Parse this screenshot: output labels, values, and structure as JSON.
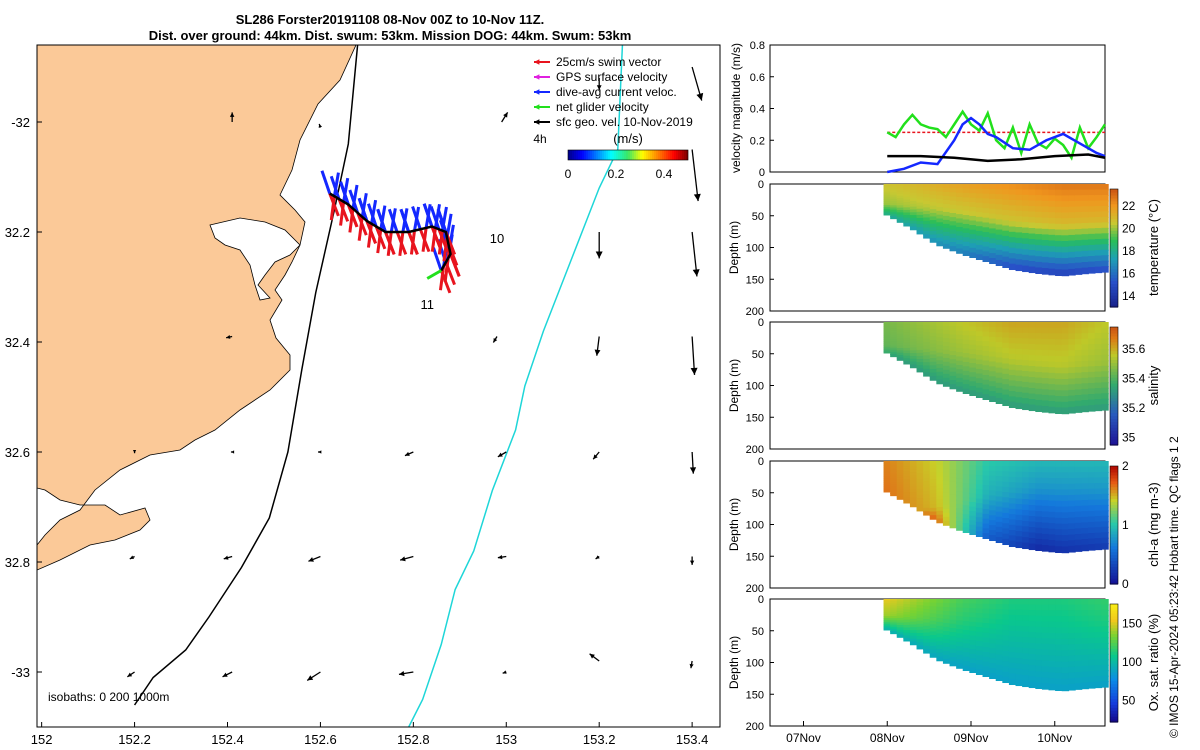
{
  "title": {
    "line1": "SL286 Forster20191108 08-Nov 00Z to 10-Nov 11Z.",
    "line2": "Dist. over ground: 44km. Dist. swum: 53km. Mission DOG: 44km. Swum: 53km"
  },
  "credit": "© IMOS 15-Apr-2024 05:23:42 Hobart time. QC flags 1  2",
  "colors": {
    "land": "#fbc998",
    "swim_vector": "#e8141e",
    "gps_velocity": "#e020e0",
    "dive_avg": "#1428ff",
    "net_glider": "#22e01c",
    "sfc_geo": "#000000",
    "isobath_0": "#000000",
    "isobath_200": "#000000",
    "isobath_1000": "#1ed6d8"
  },
  "chart_data": [
    {
      "type": "scatter",
      "panel": "map",
      "x_ticks": [
        "152",
        "152.2",
        "152.4",
        "152.6",
        "152.8",
        "153",
        "153.2",
        "153.4"
      ],
      "y_ticks": [
        "-32",
        "32.2",
        "32.4",
        "32.6",
        "32.8",
        "-33"
      ],
      "xlim": [
        151.99,
        153.46
      ],
      "ylim": [
        -33.1,
        -31.86
      ],
      "legend": {
        "placement": "top-right",
        "entries": [
          "25cm/s swim vector",
          "GPS surface velocity",
          "dive-avg current veloc.",
          "net glider velocity",
          "sfc geo. vel. 10-Nov-2019"
        ]
      },
      "colorbar": {
        "label": "(m/s)",
        "ticks": [
          "0",
          "0.2",
          "0.4"
        ],
        "range": [
          0,
          0.5
        ],
        "extra_label": "4h"
      },
      "isobath_label": "isobaths: 0   200   1000m",
      "day_labels": [
        {
          "text": "10",
          "lon": 152.98,
          "lat": -32.22
        },
        {
          "text": "11",
          "lon": 152.83,
          "lat": -32.34
        }
      ],
      "glider_track": [
        [
          152.62,
          -32.13
        ],
        [
          152.66,
          -32.15
        ],
        [
          152.7,
          -32.18
        ],
        [
          152.74,
          -32.2
        ],
        [
          152.79,
          -32.2
        ],
        [
          152.84,
          -32.19
        ],
        [
          152.87,
          -32.2
        ],
        [
          152.88,
          -32.24
        ],
        [
          152.86,
          -32.27
        ]
      ],
      "isobath_200": [
        [
          152.68,
          -31.86
        ],
        [
          152.66,
          -32.04
        ],
        [
          152.63,
          -32.16
        ],
        [
          152.59,
          -32.31
        ],
        [
          152.56,
          -32.45
        ],
        [
          152.53,
          -32.6
        ],
        [
          152.49,
          -32.72
        ],
        [
          152.43,
          -32.81
        ],
        [
          152.36,
          -32.9
        ],
        [
          152.31,
          -32.96
        ],
        [
          152.24,
          -33.01
        ],
        [
          152.2,
          -33.06
        ]
      ],
      "isobath_1000": [
        [
          153.25,
          -31.86
        ],
        [
          153.24,
          -32.05
        ],
        [
          153.2,
          -32.12
        ],
        [
          153.14,
          -32.25
        ],
        [
          153.08,
          -32.38
        ],
        [
          153.04,
          -32.48
        ],
        [
          153.02,
          -32.56
        ],
        [
          152.97,
          -32.67
        ],
        [
          152.93,
          -32.78
        ],
        [
          152.89,
          -32.85
        ],
        [
          152.86,
          -32.95
        ],
        [
          152.82,
          -33.05
        ],
        [
          152.79,
          -33.1
        ]
      ],
      "vectors": [
        {
          "lon": 152.41,
          "lat": -32.0,
          "u": 0.0,
          "v": 0.08
        },
        {
          "lon": 152.6,
          "lat": -32.01,
          "u": -0.01,
          "v": 0.03
        },
        {
          "lon": 152.99,
          "lat": -32.0,
          "u": 0.05,
          "v": 0.08
        },
        {
          "lon": 153.2,
          "lat": -31.92,
          "u": 0.0,
          "v": -0.1
        },
        {
          "lon": 153.4,
          "lat": -31.9,
          "u": 0.08,
          "v": -0.28
        },
        {
          "lon": 153.4,
          "lat": -32.05,
          "u": 0.05,
          "v": -0.43
        },
        {
          "lon": 153.2,
          "lat": -32.2,
          "u": 0.0,
          "v": -0.22
        },
        {
          "lon": 153.4,
          "lat": -32.2,
          "u": 0.04,
          "v": -0.37
        },
        {
          "lon": 152.41,
          "lat": -32.39,
          "u": -0.05,
          "v": -0.01
        },
        {
          "lon": 152.98,
          "lat": -32.39,
          "u": -0.03,
          "v": -0.05
        },
        {
          "lon": 153.2,
          "lat": -32.39,
          "u": -0.02,
          "v": -0.16
        },
        {
          "lon": 153.4,
          "lat": -32.39,
          "u": 0.02,
          "v": -0.32
        },
        {
          "lon": 152.2,
          "lat": -32.6,
          "u": 0.0,
          "v": -0.01
        },
        {
          "lon": 152.41,
          "lat": -32.6,
          "u": -0.01,
          "v": 0.0
        },
        {
          "lon": 152.6,
          "lat": -32.6,
          "u": -0.02,
          "v": 0.0
        },
        {
          "lon": 152.8,
          "lat": -32.6,
          "u": -0.07,
          "v": -0.03
        },
        {
          "lon": 153.0,
          "lat": -32.6,
          "u": -0.07,
          "v": -0.04
        },
        {
          "lon": 153.2,
          "lat": -32.6,
          "u": -0.05,
          "v": -0.06
        },
        {
          "lon": 153.4,
          "lat": -32.6,
          "u": 0.01,
          "v": -0.18
        },
        {
          "lon": 152.2,
          "lat": -32.79,
          "u": -0.04,
          "v": -0.02
        },
        {
          "lon": 152.41,
          "lat": -32.79,
          "u": -0.07,
          "v": -0.02
        },
        {
          "lon": 152.6,
          "lat": -32.79,
          "u": -0.1,
          "v": -0.04
        },
        {
          "lon": 152.8,
          "lat": -32.79,
          "u": -0.11,
          "v": -0.03
        },
        {
          "lon": 153.0,
          "lat": -32.79,
          "u": -0.07,
          "v": -0.01
        },
        {
          "lon": 153.2,
          "lat": -32.79,
          "u": -0.03,
          "v": -0.02
        },
        {
          "lon": 153.4,
          "lat": -32.79,
          "u": 0.0,
          "v": -0.07
        },
        {
          "lon": 152.2,
          "lat": -33.0,
          "u": -0.06,
          "v": -0.04
        },
        {
          "lon": 152.41,
          "lat": -33.0,
          "u": -0.08,
          "v": -0.04
        },
        {
          "lon": 152.6,
          "lat": -33.0,
          "u": -0.11,
          "v": -0.07
        },
        {
          "lon": 152.8,
          "lat": -33.0,
          "u": -0.12,
          "v": -0.02
        },
        {
          "lon": 153.0,
          "lat": -33.0,
          "u": -0.03,
          "v": -0.01
        },
        {
          "lon": 153.2,
          "lat": -32.98,
          "u": -0.08,
          "v": 0.06
        },
        {
          "lon": 153.4,
          "lat": -32.98,
          "u": -0.01,
          "v": -0.06
        }
      ]
    },
    {
      "type": "line",
      "panel": "velocity",
      "ylabel": "velocity magnitude (m/s)",
      "ylim": [
        0,
        0.8
      ],
      "y_ticks": [
        "0",
        "0.2",
        "0.4",
        "0.6",
        "0.8"
      ],
      "xlim": [
        -1.4,
        2.6
      ],
      "series": [
        {
          "name": "25cm/s swim vector",
          "color": "#e8141e",
          "style": "dashed",
          "x": [
            0.0,
            2.6
          ],
          "values": [
            0.25,
            0.25
          ]
        },
        {
          "name": "net glider velocity",
          "color": "#22e01c",
          "x": [
            0.0,
            0.1,
            0.2,
            0.3,
            0.4,
            0.5,
            0.6,
            0.7,
            0.8,
            0.9,
            1.0,
            1.1,
            1.2,
            1.3,
            1.4,
            1.5,
            1.6,
            1.7,
            1.8,
            1.9,
            2.0,
            2.1,
            2.2,
            2.3,
            2.4,
            2.5,
            2.6
          ],
          "values": [
            0.25,
            0.22,
            0.3,
            0.36,
            0.3,
            0.28,
            0.27,
            0.22,
            0.3,
            0.38,
            0.3,
            0.26,
            0.37,
            0.2,
            0.15,
            0.28,
            0.12,
            0.3,
            0.18,
            0.15,
            0.21,
            0.17,
            0.09,
            0.28,
            0.15,
            0.22,
            0.3
          ]
        },
        {
          "name": "dive-avg current veloc.",
          "color": "#1428ff",
          "x": [
            0.0,
            0.2,
            0.4,
            0.6,
            0.8,
            0.9,
            1.0,
            1.1,
            1.2,
            1.3,
            1.5,
            1.7,
            1.9,
            2.1,
            2.3,
            2.5,
            2.6
          ],
          "values": [
            0.0,
            0.02,
            0.06,
            0.05,
            0.2,
            0.3,
            0.34,
            0.3,
            0.24,
            0.22,
            0.15,
            0.14,
            0.2,
            0.24,
            0.18,
            0.12,
            0.1
          ]
        },
        {
          "name": "sfc geo. vel.",
          "color": "#000000",
          "x": [
            0.0,
            0.4,
            0.8,
            1.2,
            1.6,
            2.0,
            2.4,
            2.6
          ],
          "values": [
            0.1,
            0.1,
            0.09,
            0.07,
            0.08,
            0.1,
            0.11,
            0.09
          ]
        }
      ]
    },
    {
      "type": "heatmap",
      "panel": "temperature",
      "colorbar_label": "temperature (°C)",
      "colorbar_ticks": [
        "14",
        "16",
        "18",
        "20",
        "22"
      ],
      "range": [
        13,
        23.5
      ],
      "ylabel": "Depth (m)",
      "ylim": [
        0,
        200
      ],
      "y_ticks": [
        "0",
        "50",
        "100",
        "150",
        "200"
      ],
      "bottom_depth": {
        "x": [
          0.0,
          0.3,
          0.6,
          0.9,
          1.2,
          1.5,
          1.8,
          2.1,
          2.4,
          2.6
        ],
        "depth": [
          48,
          70,
          95,
          110,
          122,
          134,
          140,
          144,
          140,
          138
        ]
      },
      "profile": {
        "x": [
          0.0,
          0.9,
          1.5,
          2.1,
          2.6
        ],
        "surface": [
          20.5,
          21.5,
          22.0,
          22.5,
          22.5
        ],
        "thermocline": [
          30,
          40,
          55,
          60,
          55
        ],
        "bottom": [
          17.5,
          16.0,
          14.5,
          14.0,
          14.5
        ]
      }
    },
    {
      "type": "heatmap",
      "panel": "salinity",
      "colorbar_label": "salinity",
      "colorbar_ticks": [
        "35",
        "35.2",
        "35.4",
        "35.6"
      ],
      "range": [
        34.95,
        35.75
      ],
      "ylabel": "Depth (m)",
      "ylim": [
        0,
        200
      ],
      "y_ticks": [
        "0",
        "50",
        "100",
        "150",
        "200"
      ],
      "profile": {
        "x": [
          0.0,
          0.9,
          1.5,
          2.1,
          2.6
        ],
        "surface": [
          35.45,
          35.55,
          35.6,
          35.6,
          35.55
        ],
        "thermocline": [
          35,
          45,
          55,
          65,
          60
        ],
        "bottom": [
          35.3,
          35.3,
          35.3,
          35.3,
          35.3
        ]
      }
    },
    {
      "type": "heatmap",
      "panel": "chl-a",
      "colorbar_label": "chl-a (mg m-3)",
      "colorbar_ticks": [
        "0",
        "1",
        "2"
      ],
      "range": [
        0,
        2
      ],
      "ylabel": "Depth (m)",
      "ylim": [
        0,
        200
      ],
      "y_ticks": [
        "0",
        "50",
        "100",
        "150",
        "200"
      ],
      "profile": {
        "x": [
          0.0,
          0.6,
          1.2,
          1.8,
          2.6
        ],
        "surface": [
          1.6,
          1.4,
          1.0,
          0.9,
          0.9
        ],
        "thermocline": [
          80,
          70,
          50,
          40,
          40
        ],
        "bottom": [
          1.9,
          1.7,
          0.4,
          0.1,
          0.2
        ]
      }
    },
    {
      "type": "heatmap",
      "panel": "oxygen",
      "colorbar_label": "Ox. sat. ratio (%)",
      "colorbar_ticks": [
        "50",
        "100",
        "150"
      ],
      "range": [
        22,
        175
      ],
      "ylabel": "Depth (m)",
      "ylim": [
        0,
        200
      ],
      "y_ticks": [
        "0",
        "50",
        "100",
        "150",
        "200"
      ],
      "x_ticks": [
        "07Nov",
        "08Nov",
        "09Nov",
        "10Nov"
      ],
      "xlim": [
        -1.4,
        2.6
      ],
      "profile": {
        "x": [
          0.0,
          0.9,
          1.5,
          2.1,
          2.6
        ],
        "surface": [
          150,
          120,
          110,
          110,
          115
        ],
        "thermocline": [
          25,
          30,
          30,
          35,
          35
        ],
        "bottom": [
          90,
          85,
          85,
          85,
          85
        ]
      }
    }
  ]
}
